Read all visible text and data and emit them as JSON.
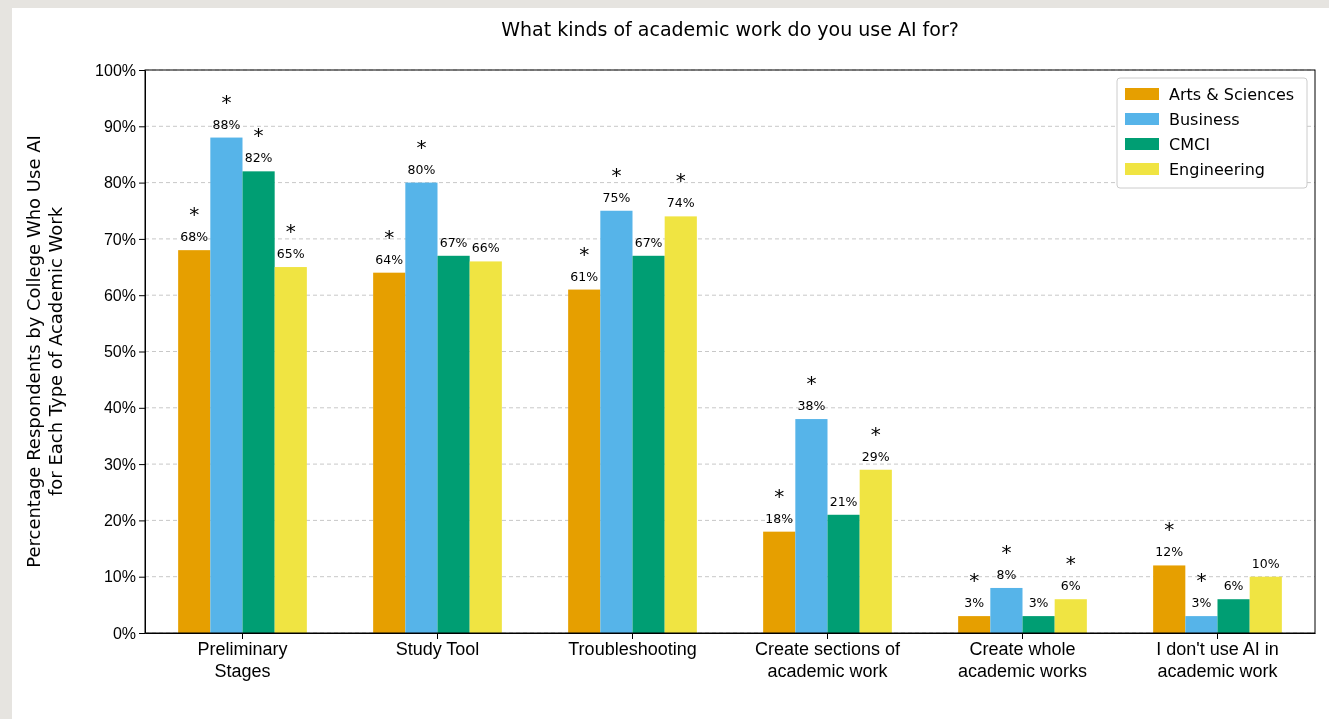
{
  "chart_data": {
    "type": "bar",
    "title": "What kinds of academic work do you use AI for?",
    "ylabel": "Percentage Respondents by College Who Use AI for Each Type of Academic Work",
    "categories": [
      "Preliminary Stages",
      "Study Tool",
      "Troubleshooting",
      "Create sections of academic work",
      "Create whole academic works",
      "I don't use AI in academic work"
    ],
    "series": [
      {
        "name": "Arts & Sciences",
        "color": "#e69f00",
        "values": [
          68,
          64,
          61,
          18,
          3,
          12
        ],
        "value_labels": [
          "*\n68%",
          "*\n64%",
          "*\n61%",
          "*\n18%",
          "*\n3%",
          "*\n12%"
        ]
      },
      {
        "name": "Business",
        "color": "#56b4e9",
        "values": [
          88,
          80,
          75,
          38,
          8,
          3
        ],
        "value_labels": [
          "*\n88%",
          "*\n80%",
          "*\n75%",
          "*\n38%",
          "*\n8%",
          "*\n3%"
        ]
      },
      {
        "name": "CMCI",
        "color": "#009e73",
        "values": [
          82,
          67,
          67,
          21,
          3,
          6
        ],
        "value_labels": [
          "*\n82%",
          "67%",
          "67%",
          "21%",
          "3%",
          "6%"
        ]
      },
      {
        "name": "Engineering",
        "color": "#f0e442",
        "values": [
          65,
          66,
          74,
          29,
          6,
          10
        ],
        "value_labels": [
          "*\n65%",
          "66%",
          "*\n74%",
          "*\n29%",
          "*\n6%",
          "10%"
        ]
      }
    ],
    "ylim": [
      0,
      100
    ],
    "yticks": [
      {
        "value": 0,
        "label": "0%"
      },
      {
        "value": 10,
        "label": "10%"
      },
      {
        "value": 20,
        "label": "20%"
      },
      {
        "value": 30,
        "label": "30%"
      },
      {
        "value": 40,
        "label": "40%"
      },
      {
        "value": 50,
        "label": "50%"
      },
      {
        "value": 60,
        "label": "60%"
      },
      {
        "value": 70,
        "label": "70%"
      },
      {
        "value": 80,
        "label": "80%"
      },
      {
        "value": 90,
        "label": "90%"
      },
      {
        "value": 100,
        "label": "100%"
      }
    ],
    "grid": "y",
    "legend": "top right"
  }
}
